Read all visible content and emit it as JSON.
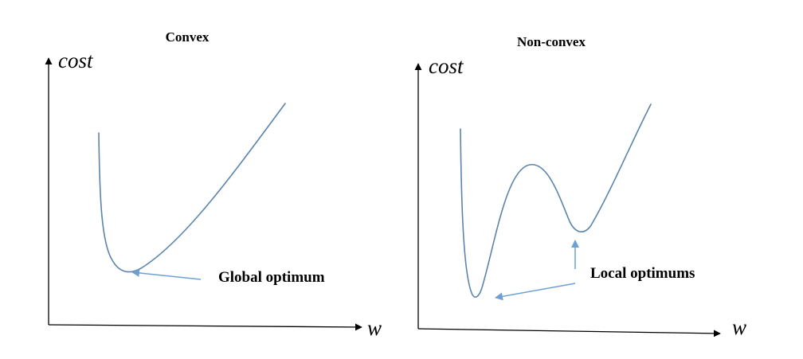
{
  "left_panel": {
    "title": "Convex",
    "y_label": "cost",
    "x_label": "w",
    "annotation": "Global optimum"
  },
  "right_panel": {
    "title": "Non-convex",
    "y_label": "cost",
    "x_label": "w",
    "annotation": "Local optimums"
  },
  "colors": {
    "curve": "#5b84ad",
    "arrow": "#6fa0d3",
    "axis": "#000000"
  }
}
